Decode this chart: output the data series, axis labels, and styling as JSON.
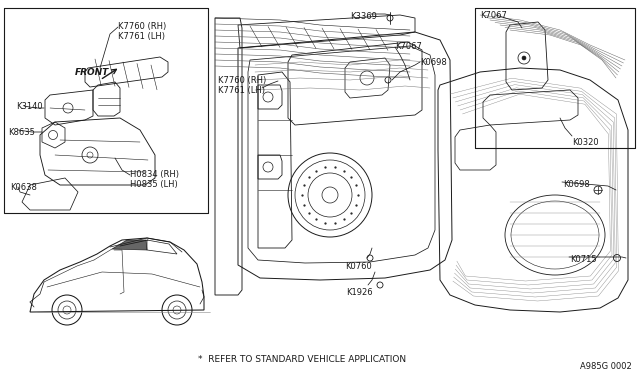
{
  "bg_color": "#f5f5f0",
  "part_number_label": "A985G 0002",
  "footer_note": "*  REFER TO STANDARD VEHICLE APPLICATION",
  "labels": {
    "K7760_RH": "K7760 (RH)",
    "K7761_LH": "K7761 (LH)",
    "K3140": "K3140",
    "K8635": "K8635",
    "K0638": "K0638",
    "H0834_RH": "H0834 (RH)",
    "H0835_LH": "H0835 (LH)",
    "K3369": "K3369",
    "K7067": "K7067",
    "K0698": "K0698",
    "K0320": "K0320",
    "K0760": "K0760",
    "K1926": "K1926",
    "K0715": "K0715",
    "K7760_RH2": "K7760 (RH)",
    "K7761_LH2": "K7761 (LH)",
    "FRONT": "FRONT"
  },
  "lw": 0.55,
  "dark": "#1a1a1a",
  "gray": "#888888"
}
